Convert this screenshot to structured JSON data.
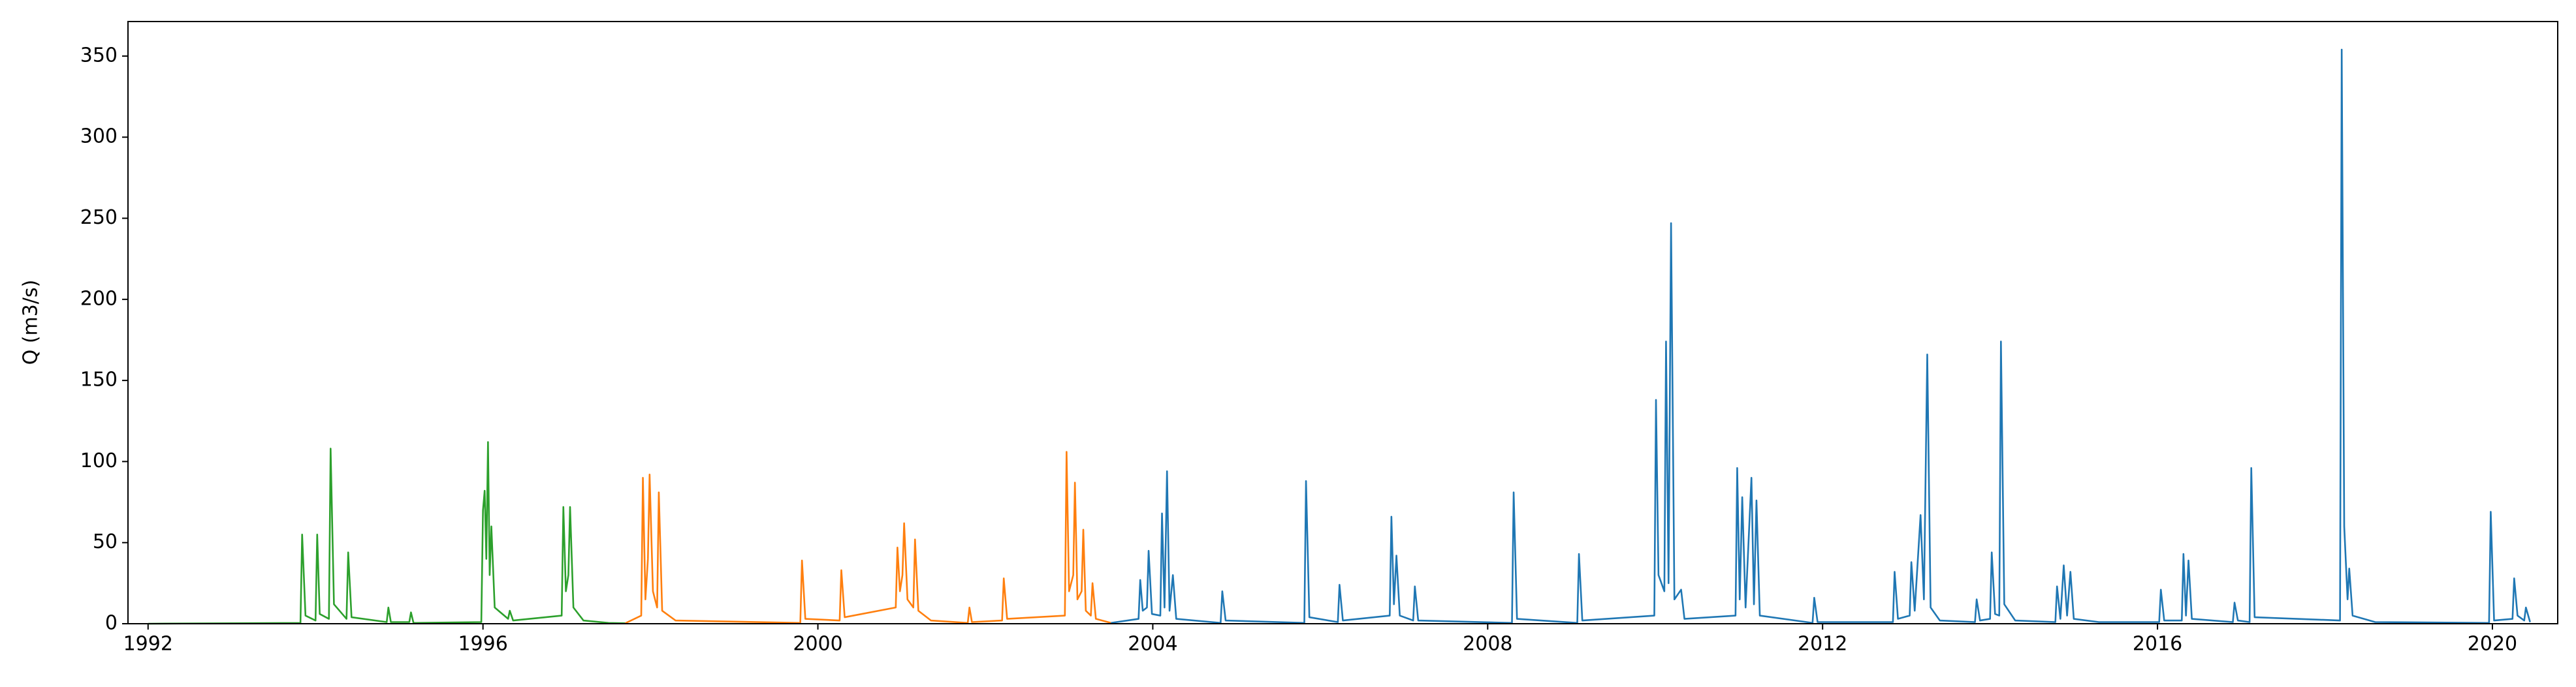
{
  "chart_data": {
    "type": "line",
    "y_label": "Q (m3/s)",
    "xlim": [
      1991.76,
      2020.78
    ],
    "ylim": [
      0,
      371.3
    ],
    "xticks": [
      1992,
      1996,
      2000,
      2004,
      2008,
      2012,
      2016,
      2020
    ],
    "yticks": [
      0,
      50,
      100,
      150,
      200,
      250,
      300,
      350
    ],
    "grid": false,
    "series": [
      {
        "color": "#2ca02c",
        "x": [
          1992.0,
          1993.82,
          1993.84,
          1993.88,
          1994.0,
          1994.02,
          1994.05,
          1994.16,
          1994.18,
          1994.22,
          1994.37,
          1994.39,
          1994.43,
          1994.85,
          1994.87,
          1994.9,
          1995.12,
          1995.14,
          1995.17,
          1995.98,
          1996.0,
          1996.02,
          1996.04,
          1996.06,
          1996.08,
          1996.1,
          1996.14,
          1996.3,
          1996.32,
          1996.36,
          1996.94,
          1996.96,
          1996.99,
          1997.02,
          1997.04,
          1997.08,
          1997.2,
          1997.5,
          1997.7
        ],
        "values": [
          0,
          0.5,
          55,
          5,
          2,
          55,
          6,
          3,
          108,
          12,
          3,
          44,
          4,
          1,
          10,
          1,
          1,
          7,
          0.5,
          1,
          70,
          82,
          40,
          112,
          30,
          60,
          10,
          3,
          8,
          2,
          5,
          72,
          20,
          30,
          72,
          10,
          2,
          0.5,
          0.3
        ]
      },
      {
        "color": "#ff7f0e",
        "x": [
          1997.7,
          1997.89,
          1997.91,
          1997.94,
          1997.97,
          1997.99,
          1998.03,
          1998.08,
          1998.1,
          1998.14,
          1998.3,
          1999.79,
          1999.81,
          1999.85,
          2000.26,
          2000.28,
          2000.32,
          2000.93,
          2000.95,
          2000.98,
          2001.01,
          2001.03,
          2001.07,
          2001.14,
          2001.16,
          2001.2,
          2001.35,
          2001.79,
          2001.81,
          2001.84,
          2002.2,
          2002.22,
          2002.26,
          2002.95,
          2002.97,
          2003.0,
          2003.05,
          2003.07,
          2003.1,
          2003.15,
          2003.17,
          2003.2,
          2003.26,
          2003.28,
          2003.32,
          2003.5
        ],
        "values": [
          0.3,
          5,
          90,
          15,
          40,
          92,
          20,
          10,
          81,
          8,
          2,
          0.5,
          39,
          3,
          2,
          33,
          4,
          10,
          47,
          20,
          30,
          62,
          15,
          10,
          52,
          8,
          2,
          0.5,
          10,
          1,
          2,
          28,
          3,
          5,
          106,
          20,
          30,
          87,
          15,
          20,
          58,
          8,
          5,
          25,
          3,
          0.5
        ]
      },
      {
        "color": "#1f77b4",
        "x": [
          2003.5,
          2003.83,
          2003.85,
          2003.88,
          2003.93,
          2003.95,
          2003.99,
          2004.09,
          2004.11,
          2004.14,
          2004.17,
          2004.2,
          2004.24,
          2004.28,
          2004.81,
          2004.83,
          2004.87,
          2005.81,
          2005.83,
          2005.87,
          2006.21,
          2006.23,
          2006.27,
          2006.83,
          2006.85,
          2006.88,
          2006.91,
          2006.95,
          2007.11,
          2007.13,
          2007.17,
          2008.29,
          2008.31,
          2008.35,
          2009.07,
          2009.09,
          2009.13,
          2009.99,
          2010.01,
          2010.04,
          2010.11,
          2010.13,
          2010.16,
          2010.19,
          2010.23,
          2010.31,
          2010.35,
          2010.96,
          2010.98,
          2011.01,
          2011.04,
          2011.08,
          2011.15,
          2011.18,
          2011.21,
          2011.25,
          2011.88,
          2011.9,
          2011.94,
          2012.84,
          2012.86,
          2012.9,
          2013.04,
          2013.06,
          2013.1,
          2013.17,
          2013.21,
          2013.25,
          2013.29,
          2013.4,
          2013.82,
          2013.84,
          2013.88,
          2014.0,
          2014.02,
          2014.06,
          2014.11,
          2014.13,
          2014.17,
          2014.3,
          2014.78,
          2014.8,
          2014.84,
          2014.88,
          2014.92,
          2014.96,
          2015.0,
          2015.3,
          2016.02,
          2016.04,
          2016.08,
          2016.29,
          2016.31,
          2016.34,
          2016.37,
          2016.41,
          2016.9,
          2016.92,
          2016.96,
          2017.1,
          2017.12,
          2017.16,
          2018.18,
          2018.2,
          2018.23,
          2018.27,
          2018.29,
          2018.33,
          2018.6,
          2019.96,
          2019.98,
          2020.02,
          2020.24,
          2020.26,
          2020.3,
          2020.38,
          2020.4,
          2020.45
        ],
        "values": [
          0.5,
          3,
          27,
          8,
          10,
          45,
          6,
          5,
          68,
          10,
          94,
          8,
          30,
          3,
          0.5,
          20,
          2,
          0.5,
          88,
          4,
          1,
          24,
          2,
          5,
          66,
          12,
          42,
          5,
          2,
          23,
          2,
          0.5,
          81,
          3,
          0.5,
          43,
          2,
          5,
          138,
          30,
          20,
          174,
          25,
          247,
          15,
          21,
          3,
          5,
          96,
          15,
          78,
          10,
          90,
          12,
          76,
          5,
          0.5,
          16,
          1,
          1,
          32,
          3,
          5,
          38,
          8,
          67,
          15,
          166,
          10,
          2,
          1,
          15,
          2,
          3,
          44,
          6,
          5,
          174,
          12,
          2,
          1,
          23,
          3,
          36,
          5,
          32,
          3,
          1,
          1,
          21,
          2,
          2,
          43,
          5,
          39,
          3,
          1,
          13,
          2,
          1,
          96,
          4,
          2,
          354,
          60,
          15,
          34,
          5,
          1,
          0.5,
          69,
          2,
          3,
          28,
          5,
          2,
          10,
          1
        ]
      }
    ]
  }
}
